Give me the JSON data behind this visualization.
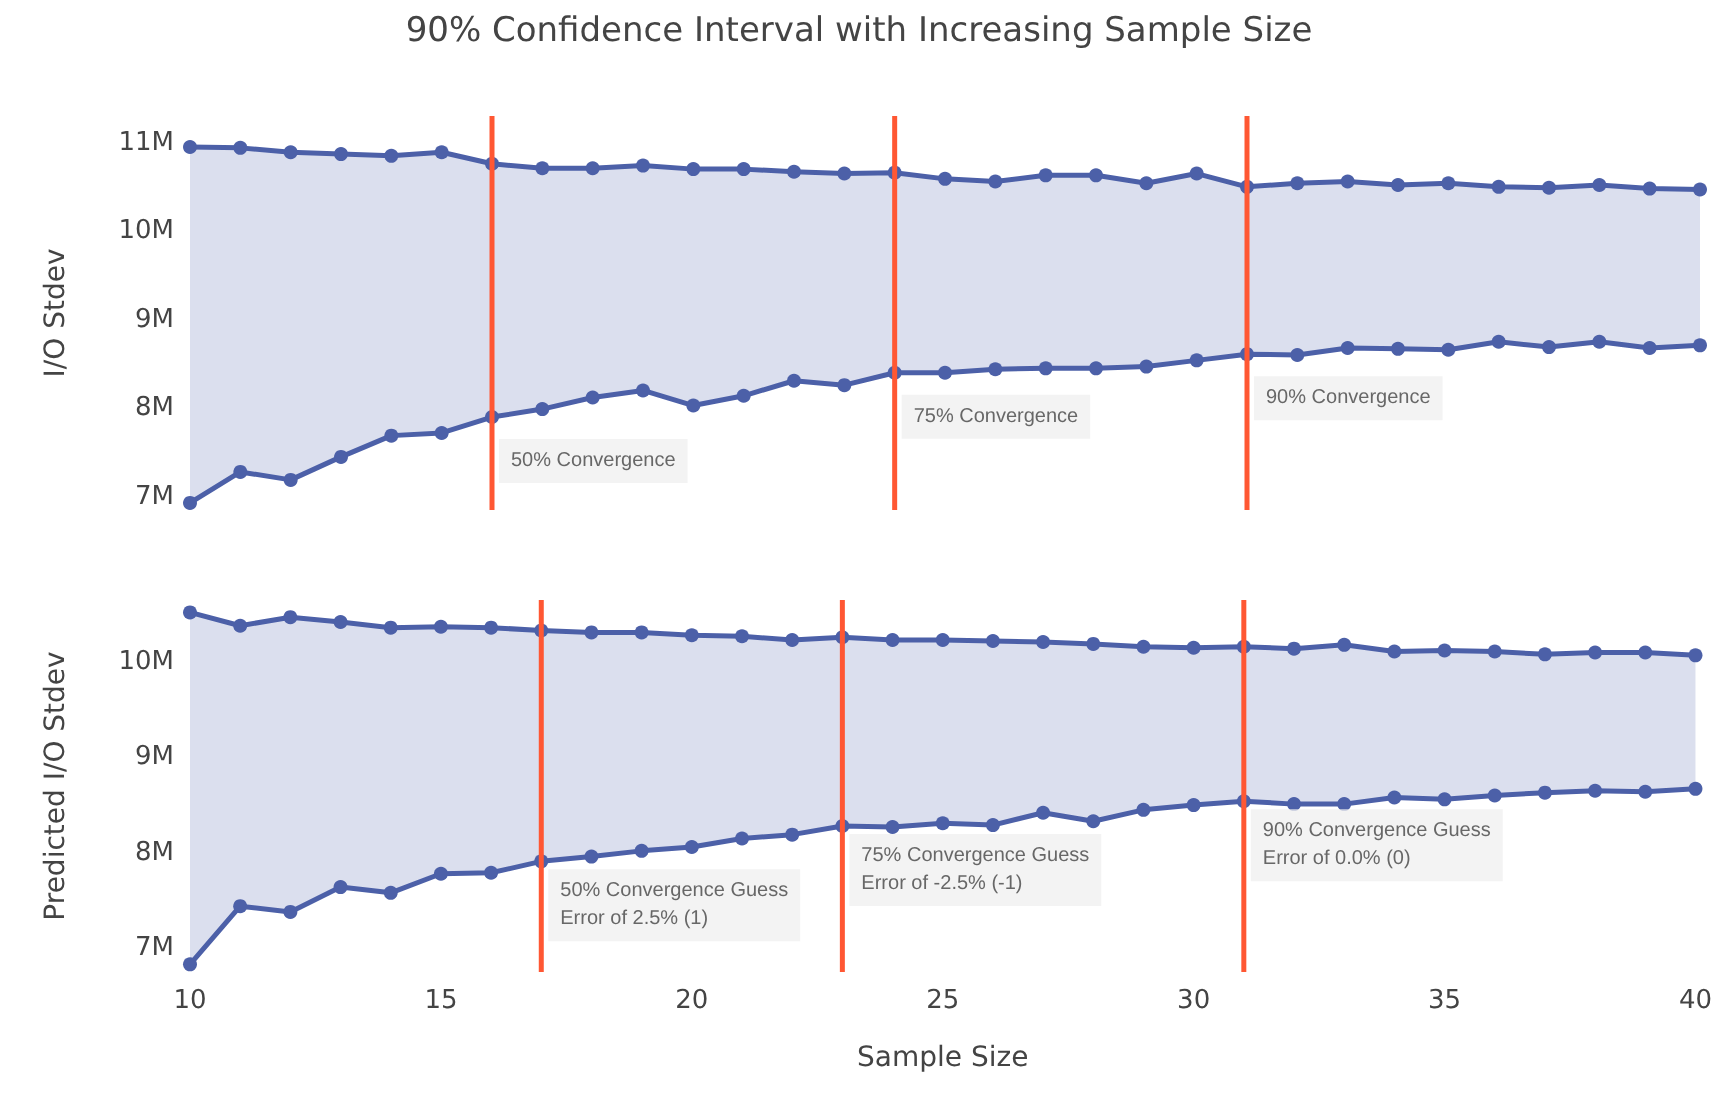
{
  "chart_data": [
    {
      "type": "line",
      "title": "90% Confidence Interval with Increasing Sample Size",
      "ylabel": "I/O Stdev",
      "x": [
        10,
        11,
        12,
        13,
        14,
        15,
        16,
        17,
        18,
        19,
        20,
        21,
        22,
        23,
        24,
        25,
        26,
        27,
        28,
        29,
        30,
        31,
        32,
        33,
        34,
        35,
        36,
        37,
        38,
        39,
        40
      ],
      "series": [
        {
          "type": "area",
          "color": "#4c60a8",
          "values": [
            10.95,
            10.94,
            10.89,
            10.87,
            10.85,
            10.89,
            10.76,
            10.71,
            10.71,
            10.74,
            10.7,
            10.7,
            10.67,
            10.65,
            10.66,
            10.59,
            10.56,
            10.63,
            10.63,
            10.54,
            10.65,
            10.5,
            10.54,
            10.56,
            10.52,
            10.54,
            10.5,
            10.49,
            10.52,
            10.48,
            10.47
          ]
        },
        {
          "color": "#4c60a8",
          "values": [
            6.93,
            7.28,
            7.19,
            7.45,
            7.69,
            7.72,
            7.9,
            7.99,
            8.12,
            8.2,
            8.03,
            8.14,
            8.31,
            8.26,
            8.4,
            8.4,
            8.44,
            8.45,
            8.45,
            8.47,
            8.54,
            8.61,
            8.6,
            8.68,
            8.67,
            8.66,
            8.75,
            8.69,
            8.75,
            8.68,
            8.71
          ]
        }
      ],
      "xlim": [
        10,
        40
      ],
      "xticks": [
        10,
        15,
        20,
        25,
        30,
        35,
        40
      ],
      "ylim": [
        6.85,
        11.3
      ],
      "yticks": [
        {
          "value": 7,
          "label": "7M"
        },
        {
          "value": 8,
          "label": "8M"
        },
        {
          "value": 9,
          "label": "9M"
        },
        {
          "value": 10,
          "label": "10M"
        },
        {
          "value": 11,
          "label": "11M"
        }
      ],
      "ref_lines": [
        {
          "axis": "x",
          "value": 16,
          "color": "#ff5733"
        },
        {
          "axis": "x",
          "value": 24,
          "color": "#ff5733"
        },
        {
          "axis": "x",
          "value": 31,
          "color": "#ff5733"
        }
      ],
      "annotations": [
        {
          "text": "50% Convergence",
          "x": 16,
          "y": 7.9
        },
        {
          "text": "75% Convergence",
          "x": 24,
          "y": 8.4
        },
        {
          "text": "90% Convergence",
          "x": 31,
          "y": 8.61
        }
      ],
      "tick_labels": "y",
      "grid": false,
      "marker": "circle",
      "line_style": "solid"
    },
    {
      "type": "line",
      "xlabel": "Sample Size",
      "ylabel": "Predicted I/O Stdev",
      "x": [
        10,
        11,
        12,
        13,
        14,
        15,
        16,
        17,
        18,
        19,
        20,
        21,
        22,
        23,
        24,
        25,
        26,
        27,
        28,
        29,
        30,
        31,
        32,
        33,
        34,
        35,
        36,
        37,
        38,
        39,
        40
      ],
      "series": [
        {
          "type": "area",
          "color": "#4c60a8",
          "values": [
            10.52,
            10.38,
            10.47,
            10.42,
            10.36,
            10.37,
            10.36,
            10.33,
            10.31,
            10.31,
            10.28,
            10.27,
            10.23,
            10.26,
            10.23,
            10.23,
            10.22,
            10.21,
            10.19,
            10.16,
            10.15,
            10.16,
            10.14,
            10.18,
            10.11,
            10.12,
            10.11,
            10.08,
            10.1,
            10.1,
            10.07
          ]
        },
        {
          "color": "#4c60a8",
          "values": [
            6.83,
            7.44,
            7.38,
            7.64,
            7.58,
            7.78,
            7.79,
            7.91,
            7.96,
            8.02,
            8.06,
            8.15,
            8.19,
            8.28,
            8.27,
            8.31,
            8.29,
            8.42,
            8.33,
            8.45,
            8.5,
            8.54,
            8.51,
            8.51,
            8.58,
            8.56,
            8.6,
            8.63,
            8.65,
            8.64,
            8.67
          ]
        }
      ],
      "xlim": [
        10,
        40
      ],
      "xticks": [
        10,
        15,
        20,
        25,
        30,
        35,
        40
      ],
      "ylim": [
        6.75,
        10.65
      ],
      "yticks": [
        {
          "value": 7,
          "label": "7M"
        },
        {
          "value": 8,
          "label": "8M"
        },
        {
          "value": 9,
          "label": "9M"
        },
        {
          "value": 10,
          "label": "10M"
        }
      ],
      "ref_lines": [
        {
          "axis": "x",
          "value": 17,
          "color": "#ff5733"
        },
        {
          "axis": "x",
          "value": 23,
          "color": "#ff5733"
        },
        {
          "axis": "x",
          "value": 31,
          "color": "#ff5733"
        }
      ],
      "annotations": [
        {
          "text": "50% Convergence Guess\nError of 2.5% (1)",
          "x": 17,
          "y": 7.91
        },
        {
          "text": "75% Convergence Guess\nError of -2.5% (-1)",
          "x": 23,
          "y": 8.28
        },
        {
          "text": "90% Convergence Guess\nError of 0.0% (0)",
          "x": 31,
          "y": 8.54
        }
      ],
      "grid": false,
      "marker": "circle",
      "line_style": "solid"
    }
  ]
}
